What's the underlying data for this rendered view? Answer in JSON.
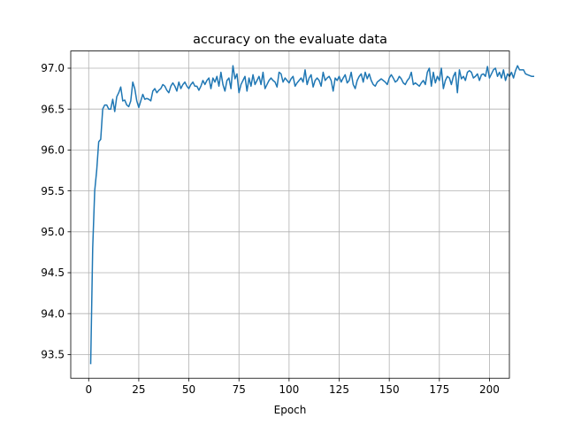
{
  "chart_data": {
    "type": "line",
    "title": "accuracy on the evaluate data",
    "xlabel": "Epoch",
    "ylabel": "",
    "xlim": [
      -8.95,
      209.95
    ],
    "ylim": [
      93.21,
      97.21
    ],
    "xticks": [
      0,
      25,
      50,
      75,
      100,
      125,
      150,
      175,
      200
    ],
    "yticks": [
      93.5,
      94.0,
      94.5,
      95.0,
      95.5,
      96.0,
      96.5,
      97.0
    ],
    "ytick_labels": [
      "93.5",
      "94.0",
      "94.5",
      "95.0",
      "95.5",
      "96.0",
      "96.5",
      "97.0"
    ],
    "xtick_labels": [
      "0",
      "25",
      "50",
      "75",
      "100",
      "125",
      "150",
      "175",
      "200"
    ],
    "grid": true,
    "series": [
      {
        "color": "#1f77b4",
        "x_start": 1,
        "x_step": 1,
        "values": [
          93.39,
          94.8,
          95.5,
          95.75,
          96.1,
          96.13,
          96.5,
          96.55,
          96.55,
          96.5,
          96.5,
          96.62,
          96.47,
          96.65,
          96.7,
          96.77,
          96.6,
          96.61,
          96.55,
          96.53,
          96.6,
          96.83,
          96.75,
          96.6,
          96.52,
          96.6,
          96.68,
          96.62,
          96.63,
          96.62,
          96.6,
          96.72,
          96.75,
          96.7,
          96.73,
          96.75,
          96.8,
          96.78,
          96.73,
          96.7,
          96.78,
          96.82,
          96.78,
          96.72,
          96.83,
          96.75,
          96.8,
          96.83,
          96.78,
          96.75,
          96.8,
          96.83,
          96.78,
          96.78,
          96.73,
          96.78,
          96.85,
          96.8,
          96.85,
          96.88,
          96.75,
          96.88,
          96.83,
          96.9,
          96.78,
          96.95,
          96.8,
          96.72,
          96.85,
          96.88,
          96.75,
          97.03,
          96.87,
          96.93,
          96.7,
          96.8,
          96.85,
          96.9,
          96.72,
          96.88,
          96.78,
          96.92,
          96.8,
          96.85,
          96.9,
          96.8,
          96.95,
          96.75,
          96.8,
          96.85,
          96.88,
          96.85,
          96.83,
          96.77,
          96.95,
          96.93,
          96.83,
          96.88,
          96.85,
          96.82,
          96.87,
          96.9,
          96.78,
          96.82,
          96.85,
          96.88,
          96.83,
          96.98,
          96.8,
          96.88,
          96.92,
          96.77,
          96.85,
          96.88,
          96.85,
          96.78,
          96.95,
          96.85,
          96.88,
          96.9,
          96.85,
          96.72,
          96.88,
          96.85,
          96.9,
          96.83,
          96.88,
          96.92,
          96.82,
          96.85,
          96.95,
          96.8,
          96.75,
          96.85,
          96.9,
          96.93,
          96.83,
          96.95,
          96.87,
          96.93,
          96.85,
          96.8,
          96.78,
          96.83,
          96.85,
          96.87,
          96.85,
          96.83,
          96.8,
          96.88,
          96.92,
          96.88,
          96.83,
          96.85,
          96.9,
          96.87,
          96.82,
          96.8,
          96.85,
          96.88,
          96.95,
          96.8,
          96.82,
          96.8,
          96.78,
          96.82,
          96.85,
          96.8,
          96.95,
          97.0,
          96.78,
          96.95,
          96.82,
          96.9,
          96.85,
          97.0,
          96.75,
          96.85,
          96.9,
          96.88,
          96.8,
          96.9,
          96.95,
          96.7,
          96.98,
          96.87,
          96.9,
          96.85,
          96.95,
          96.97,
          96.95,
          96.88,
          96.9,
          96.93,
          96.85,
          96.92,
          96.93,
          96.9,
          97.02,
          96.88,
          96.93,
          96.98,
          97.0,
          96.9,
          96.95,
          96.88,
          96.98,
          96.85,
          96.93,
          96.9,
          96.95,
          96.88,
          96.97,
          97.03,
          96.98,
          96.98,
          96.98,
          96.93,
          96.92,
          96.91,
          96.9,
          96.9
        ]
      }
    ]
  }
}
